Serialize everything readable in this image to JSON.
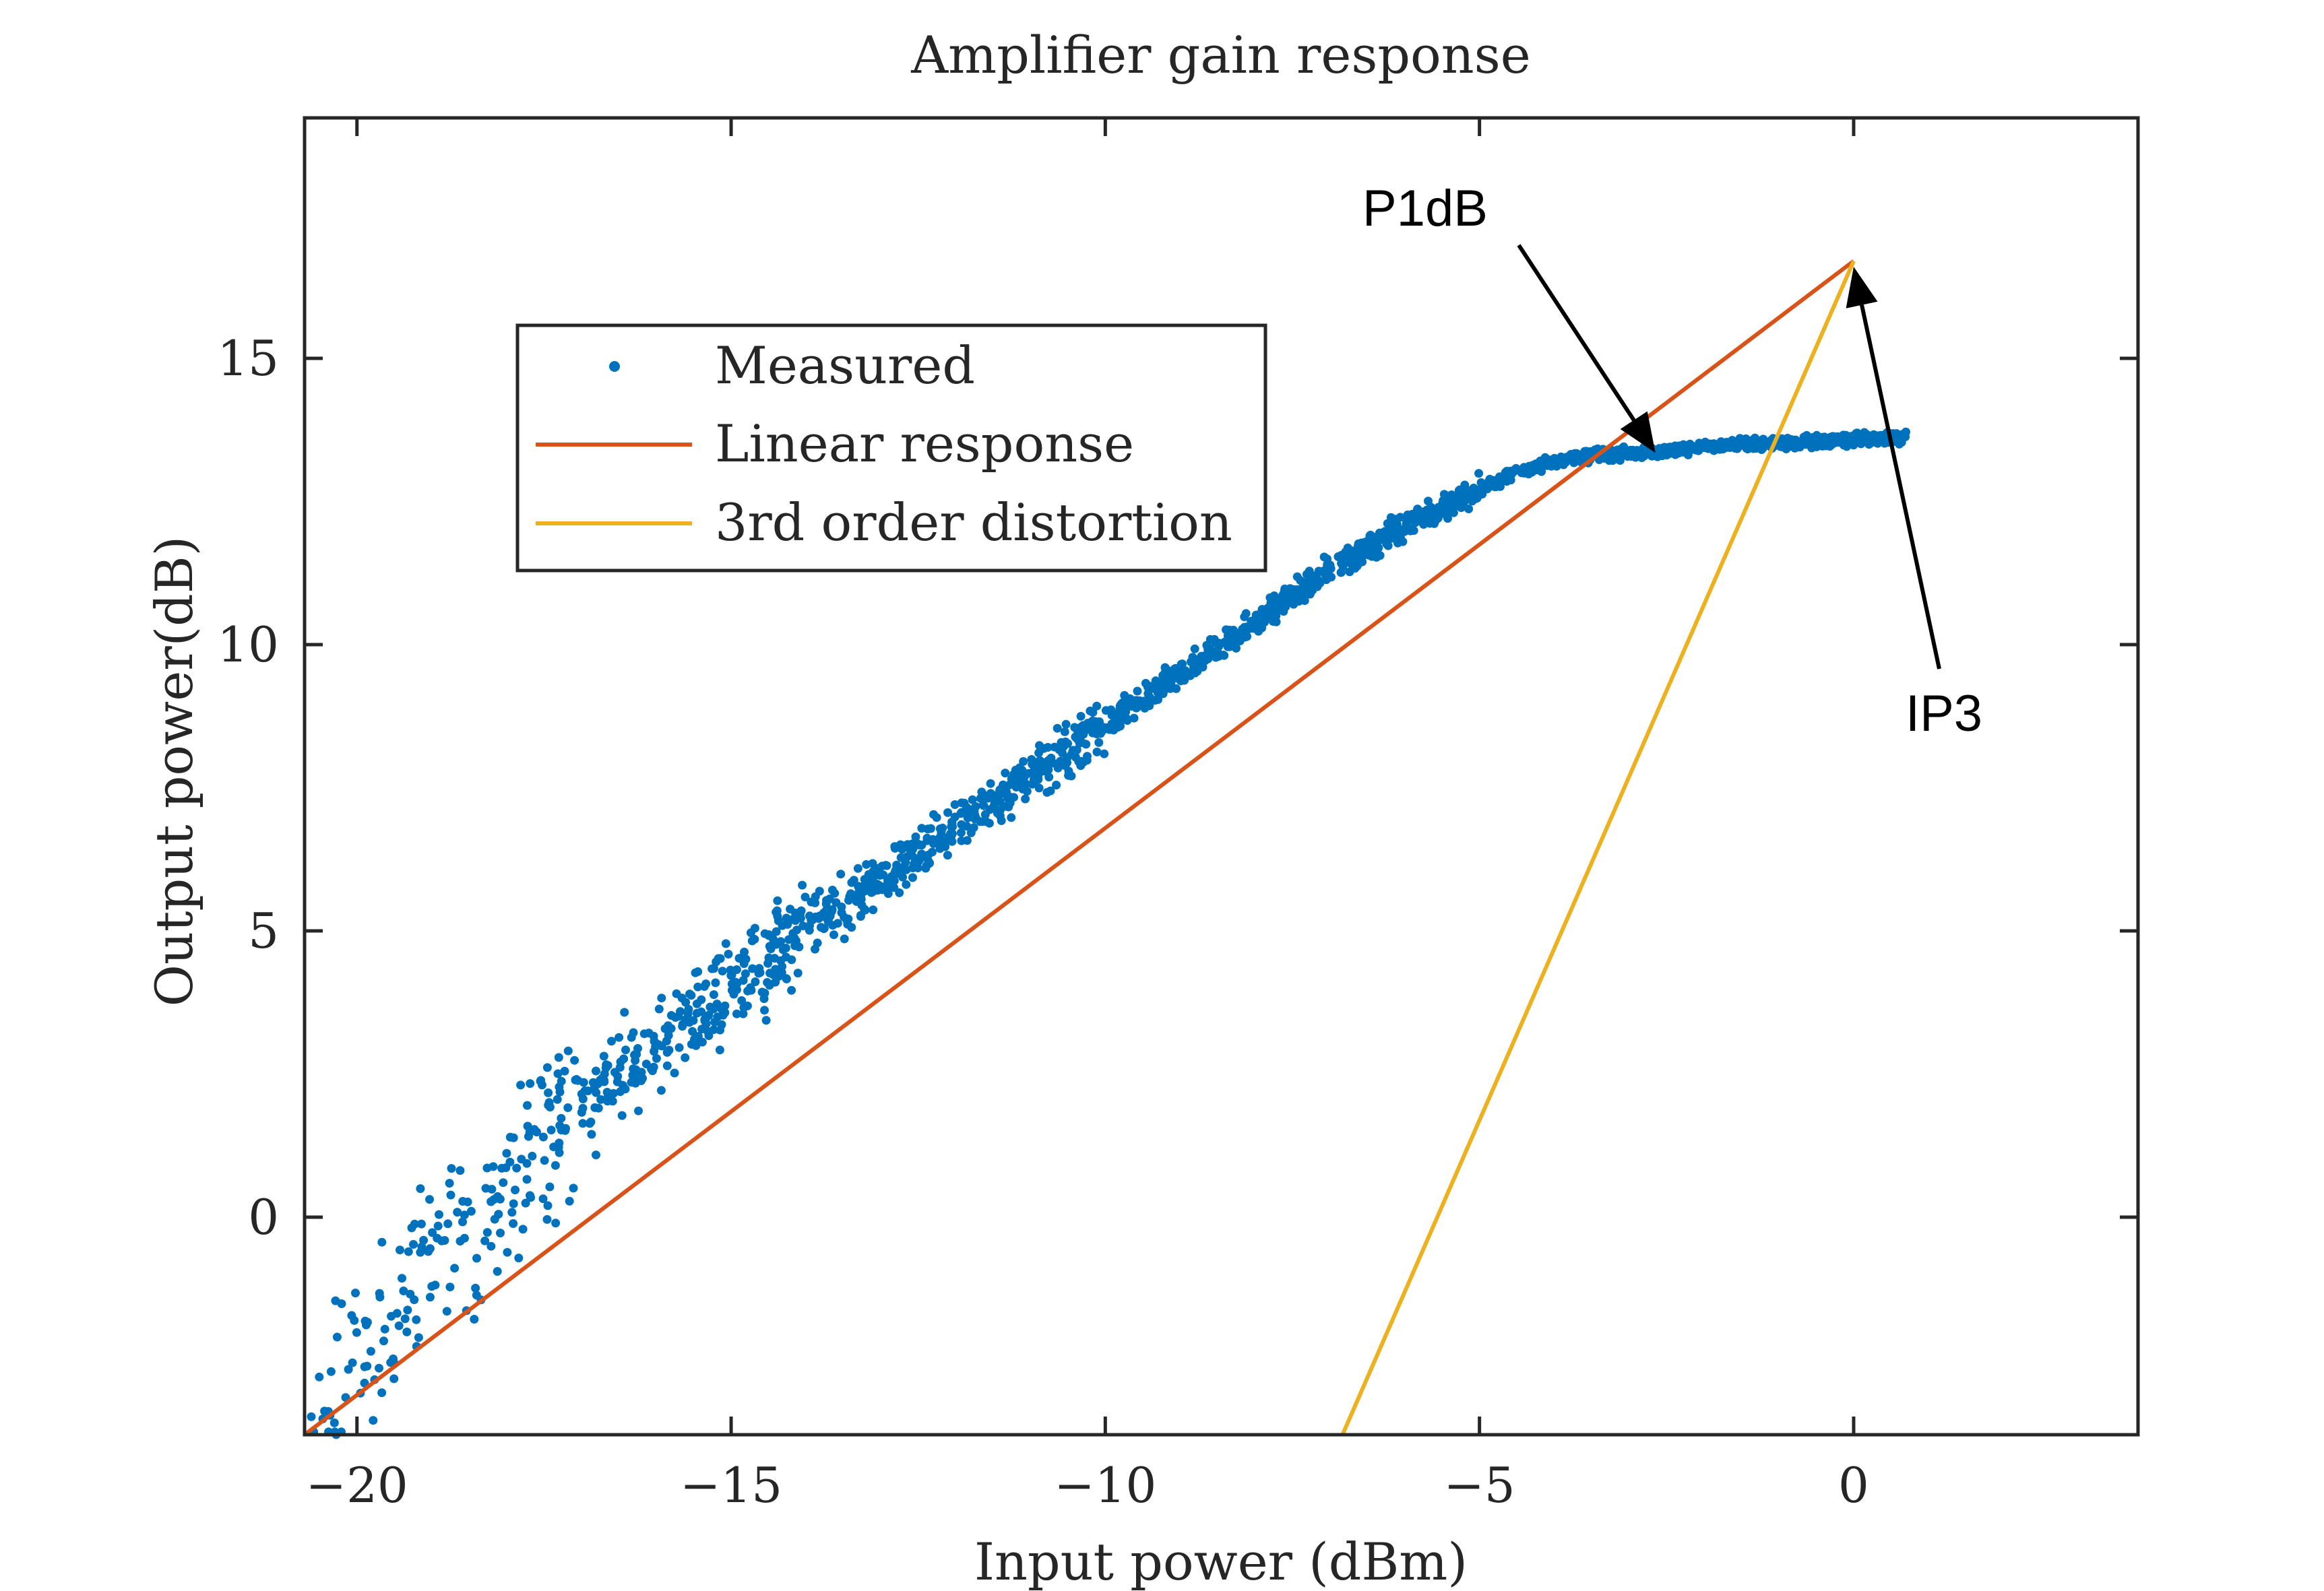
{
  "chart_data": {
    "type": "scatter",
    "title": "Amplifier gain response",
    "xlabel": "Input power (dBm)",
    "ylabel": "Output power(dB)",
    "xlim": [
      -20.7,
      3.8
    ],
    "ylim": [
      -3.8,
      19.2
    ],
    "xticks": [
      -20,
      -15,
      -10,
      -5,
      0
    ],
    "yticks": [
      0,
      5,
      10,
      15
    ],
    "grid": false,
    "legend_position": "upper-left",
    "series": [
      {
        "name": "Measured",
        "kind": "scatter",
        "color": "#0072BD",
        "description_points": [
          [
            -20.6,
            -3.7
          ],
          [
            -20.2,
            -2.9
          ],
          [
            -19.8,
            -2.2
          ],
          [
            -19.4,
            -1.5
          ],
          [
            -19.0,
            -0.8
          ],
          [
            -18.6,
            -0.2
          ],
          [
            -18.2,
            0.4
          ],
          [
            -17.8,
            0.9
          ],
          [
            -17.4,
            1.4
          ],
          [
            -17.0,
            1.9
          ],
          [
            -16.5,
            2.5
          ],
          [
            -16.0,
            3.0
          ],
          [
            -15.5,
            3.5
          ],
          [
            -15.0,
            4.0
          ],
          [
            -14.5,
            4.5
          ],
          [
            -14.0,
            5.0
          ],
          [
            -13.0,
            5.9
          ],
          [
            -12.0,
            6.8
          ],
          [
            -11.0,
            7.7
          ],
          [
            -10.0,
            8.6
          ],
          [
            -9.0,
            9.5
          ],
          [
            -8.0,
            10.4
          ],
          [
            -7.0,
            11.3
          ],
          [
            -6.0,
            12.1
          ],
          [
            -5.0,
            12.7
          ],
          [
            -4.5,
            13.0
          ],
          [
            -4.0,
            13.2
          ],
          [
            -3.5,
            13.3
          ],
          [
            -3.0,
            13.35
          ],
          [
            -2.5,
            13.4
          ],
          [
            -2.0,
            13.45
          ],
          [
            -1.5,
            13.5
          ],
          [
            -1.0,
            13.52
          ],
          [
            -0.5,
            13.55
          ],
          [
            0.0,
            13.57
          ],
          [
            0.35,
            13.6
          ],
          [
            0.7,
            13.62
          ]
        ]
      },
      {
        "name": "Linear response",
        "kind": "line",
        "color": "#D95319",
        "x": [
          -20.7,
          0
        ],
        "y": [
          -3.8,
          16.7
        ]
      },
      {
        "name": "3rd order distortion",
        "kind": "line",
        "color": "#EDB120",
        "x": [
          -6.83,
          0
        ],
        "y": [
          -3.8,
          16.7
        ]
      }
    ],
    "annotations": [
      {
        "label": "P1dB",
        "text_at": [
          -4.5,
          17.6
        ],
        "arrow_to": [
          -2.65,
          13.35
        ]
      },
      {
        "label": "IP3",
        "text_at": [
          1.2,
          8.8
        ],
        "arrow_to": [
          0.0,
          16.6
        ]
      }
    ]
  }
}
